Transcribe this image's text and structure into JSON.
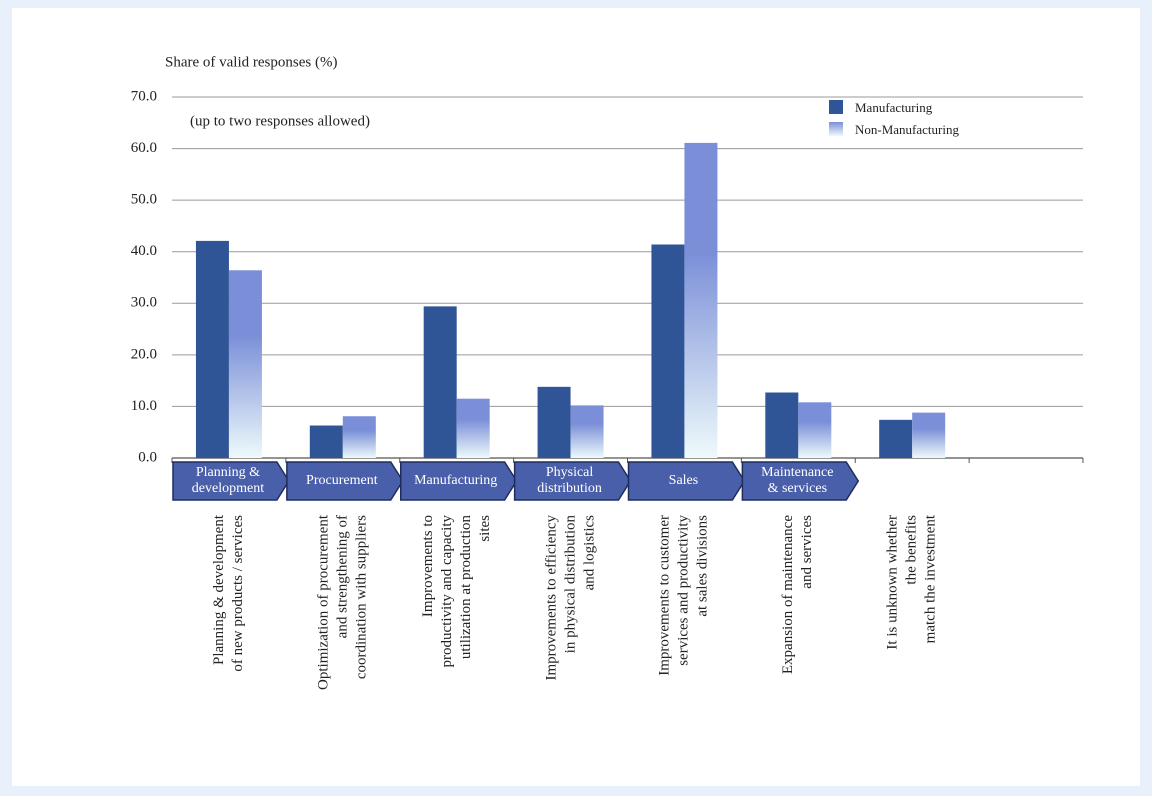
{
  "chart_data": {
    "type": "bar",
    "ylabel": "Share of valid responses (%)",
    "annotation": "(up to two responses allowed)",
    "categories": [
      "Planning & development\nof new products / services",
      "Optimization of procurement\nand strengthening of\ncoordination with suppliers",
      "Improvements to\nproductivity and capacity\nutilization at production\nsites",
      "Improvements to efficiency\nin physical distribution\nand logistics",
      "Improvements to customer\nservices and productivity\nat sales divisions",
      "Expansion of maintenance\nand services",
      "It is unknown whether\nthe benefits\nmatch the investment",
      null
    ],
    "stages": [
      "Planning &\ndevelopment",
      "Procurement",
      "Manufacturing",
      "Physical\ndistribution",
      "Sales",
      "Maintenance\n& services"
    ],
    "series": [
      {
        "name": "Manufacturing",
        "color": "#2f5597",
        "values": [
          42.1,
          6.3,
          29.4,
          13.8,
          41.4,
          12.7,
          7.4,
          null
        ]
      },
      {
        "name": "Non-Manufacturing",
        "color": "#7b8fd8",
        "values": [
          36.4,
          8.1,
          11.5,
          10.2,
          61.1,
          10.8,
          8.8,
          null
        ]
      }
    ],
    "ylim": [
      0,
      70
    ],
    "yticks": [
      {
        "value": 0,
        "label": "0.0"
      },
      {
        "value": 10,
        "label": "10.0"
      },
      {
        "value": 20,
        "label": "20.0"
      },
      {
        "value": 30,
        "label": "30.0"
      },
      {
        "value": 40,
        "label": "40.0"
      },
      {
        "value": 50,
        "label": "50.0"
      },
      {
        "value": 60,
        "label": "60.0"
      },
      {
        "value": 70,
        "label": "70.0"
      }
    ],
    "grid": true
  }
}
